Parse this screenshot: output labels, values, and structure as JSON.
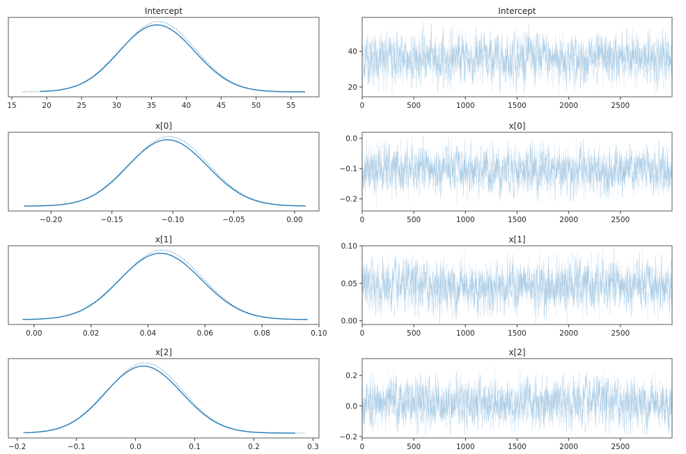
{
  "chart_data": {
    "type": "line",
    "layout": "trace-plot grid: 4 rows x 2 columns (left: posterior density, right: sample trace)",
    "line_color": "#1f77b4",
    "trace_color": "#7fb3d9",
    "chains": [
      "chain 0 (solid)",
      "chain 1 (dotted)"
    ],
    "n_samples": 3000,
    "panels": [
      {
        "param": "Intercept",
        "density": {
          "title": "Intercept",
          "xlim": [
            14.5,
            59
          ],
          "xticks": [
            "15",
            "20",
            "25",
            "30",
            "35",
            "40",
            "45",
            "50",
            "55"
          ],
          "xtick_values": [
            15,
            20,
            25,
            30,
            35,
            40,
            45,
            50,
            55
          ],
          "chain_ranges": [
            [
              19,
              57
            ],
            [
              16.5,
              57
            ]
          ],
          "mode": 36,
          "sd": 5.3
        },
        "trace": {
          "title": "Intercept",
          "ylim": [
            14.5,
            59
          ],
          "yticks": [
            "20",
            "40"
          ],
          "ytick_values": [
            20,
            40
          ],
          "xlim": [
            0,
            3000
          ],
          "xticks": [
            "0",
            "500",
            "1000",
            "1500",
            "2000",
            "2500"
          ],
          "xtick_values": [
            0,
            500,
            1000,
            1500,
            2000,
            2500
          ],
          "mean": 36,
          "min": 16.5,
          "max": 57
        }
      },
      {
        "param": "x[0]",
        "density": {
          "title": "x[0]",
          "xlim": [
            -0.235,
            0.02
          ],
          "xticks": [
            "−0.20",
            "−0.15",
            "−0.10",
            "−0.05",
            "0.00"
          ],
          "xtick_values": [
            -0.2,
            -0.15,
            -0.1,
            -0.05,
            0.0
          ],
          "chain_ranges": [
            [
              -0.222,
              0.009
            ],
            [
              -0.222,
              0.009
            ]
          ],
          "mode": -0.103,
          "sd": 0.032
        },
        "trace": {
          "title": "x[0]",
          "ylim": [
            -0.24,
            0.02
          ],
          "yticks": [
            "−0.2",
            "−0.1",
            "0.0"
          ],
          "ytick_values": [
            -0.2,
            -0.1,
            0.0
          ],
          "xlim": [
            0,
            3000
          ],
          "xticks": [
            "0",
            "500",
            "1000",
            "1500",
            "2000",
            "2500"
          ],
          "xtick_values": [
            0,
            500,
            1000,
            1500,
            2000,
            2500
          ],
          "mean": -0.105,
          "min": -0.222,
          "max": 0.009
        }
      },
      {
        "param": "x[1]",
        "density": {
          "title": "x[1]",
          "xlim": [
            -0.009,
            0.1
          ],
          "xticks": [
            "0.00",
            "0.02",
            "0.04",
            "0.06",
            "0.08",
            "0.10"
          ],
          "xtick_values": [
            0.0,
            0.02,
            0.04,
            0.06,
            0.08,
            0.1
          ],
          "chain_ranges": [
            [
              -0.004,
              0.096
            ],
            [
              -0.004,
              0.096
            ]
          ],
          "mode": 0.045,
          "sd": 0.014
        },
        "trace": {
          "title": "x[1]",
          "ylim": [
            -0.005,
            0.1
          ],
          "yticks": [
            "0.00",
            "0.05",
            "0.10"
          ],
          "ytick_values": [
            0.0,
            0.05,
            0.1
          ],
          "xlim": [
            0,
            3000
          ],
          "xticks": [
            "0",
            "500",
            "1000",
            "1500",
            "2000",
            "2500"
          ],
          "xtick_values": [
            0,
            500,
            1000,
            1500,
            2000,
            2500
          ],
          "mean": 0.046,
          "min": -0.004,
          "max": 0.096
        }
      },
      {
        "param": "x[2]",
        "density": {
          "title": "x[2]",
          "xlim": [
            -0.215,
            0.31
          ],
          "xticks": [
            "−0.2",
            "−0.1",
            "0.0",
            "0.1",
            "0.2",
            "0.3"
          ],
          "xtick_values": [
            -0.2,
            -0.1,
            0.0,
            0.1,
            0.2,
            0.3
          ],
          "chain_ranges": [
            [
              -0.188,
              0.27
            ],
            [
              -0.19,
              0.285
            ]
          ],
          "mode": 0.016,
          "sd": 0.063
        },
        "trace": {
          "title": "x[2]",
          "ylim": [
            -0.21,
            0.31
          ],
          "yticks": [
            "−0.2",
            "0.0",
            "0.2"
          ],
          "ytick_values": [
            -0.2,
            0.0,
            0.2
          ],
          "xlim": [
            0,
            3000
          ],
          "xticks": [
            "0",
            "500",
            "1000",
            "1500",
            "2000",
            "2500"
          ],
          "xtick_values": [
            0,
            500,
            1000,
            1500,
            2000,
            2500
          ],
          "mean": 0.02,
          "min": -0.19,
          "max": 0.285
        }
      }
    ]
  }
}
